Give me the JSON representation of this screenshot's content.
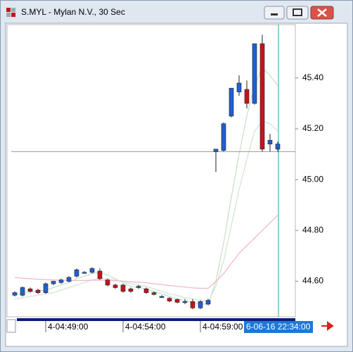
{
  "chart_data": {
    "type": "candlestick",
    "title": "S.MYL - Mylan N.V., 30 Sec",
    "categories": [
      null,
      null,
      null,
      null,
      "4-04:49:00",
      null,
      null,
      null,
      null,
      null,
      null,
      null,
      null,
      null,
      "4-04:54:00",
      null,
      null,
      null,
      null,
      null,
      null,
      null,
      null,
      null,
      "4-04:59:00",
      null,
      null,
      null,
      null,
      null,
      null,
      null,
      null,
      null,
      null
    ],
    "open": [
      44.545,
      44.545,
      44.57,
      44.565,
      44.555,
      44.59,
      44.595,
      44.6,
      44.62,
      44.635,
      44.635,
      44.64,
      44.605,
      44.585,
      44.585,
      44.57,
      44.575,
      44.57,
      44.555,
      44.54,
      44.533,
      44.528,
      44.52,
      44.52,
      44.495,
      44.51,
      45.11,
      45.115,
      45.25,
      45.345,
      45.355,
      45.3,
      45.535,
      45.14,
      45.12
    ],
    "high": [
      44.56,
      44.58,
      44.575,
      44.57,
      44.595,
      44.6,
      44.61,
      44.62,
      44.65,
      44.64,
      44.655,
      44.65,
      44.61,
      44.59,
      44.59,
      44.575,
      44.585,
      44.575,
      44.56,
      44.545,
      44.537,
      44.532,
      44.53,
      44.53,
      44.525,
      44.53,
      45.12,
      45.225,
      45.36,
      45.41,
      45.39,
      45.535,
      45.57,
      45.18,
      45.15
    ],
    "low": [
      44.54,
      44.54,
      44.555,
      44.55,
      44.55,
      44.585,
      44.59,
      44.595,
      44.615,
      44.63,
      44.63,
      44.605,
      44.58,
      44.57,
      44.555,
      44.555,
      44.57,
      44.55,
      44.545,
      44.535,
      44.518,
      44.513,
      44.51,
      44.49,
      44.49,
      44.505,
      45.03,
      45.11,
      45.245,
      45.33,
      45.28,
      45.295,
      45.11,
      45.11,
      45.11
    ],
    "close": [
      44.555,
      44.575,
      44.56,
      44.555,
      44.59,
      44.6,
      44.605,
      44.615,
      44.645,
      44.635,
      44.65,
      44.61,
      44.585,
      44.575,
      44.56,
      44.56,
      44.58,
      44.555,
      44.548,
      44.54,
      44.522,
      44.517,
      44.52,
      44.495,
      44.52,
      44.525,
      45.12,
      45.22,
      45.36,
      45.38,
      45.3,
      45.535,
      45.12,
      45.155,
      45.14
    ],
    "up_color": "#1f5fd0",
    "down_color": "#c8121c",
    "overlays": [
      {
        "color": "#c9e2c9",
        "values": [
          44.55,
          44.55,
          44.56,
          44.56,
          44.565,
          44.575,
          44.585,
          44.595,
          44.61,
          44.62,
          44.63,
          44.635,
          44.625,
          44.61,
          44.595,
          44.58,
          44.575,
          44.57,
          44.56,
          44.55,
          44.54,
          44.53,
          44.525,
          44.515,
          44.51,
          44.51,
          44.6,
          44.75,
          44.93,
          45.1,
          45.25,
          45.37,
          45.44,
          45.41,
          45.37
        ]
      },
      {
        "color": "#d2e6d2",
        "values": [
          44.53,
          44.535,
          44.54,
          44.545,
          44.55,
          44.555,
          44.565,
          44.575,
          44.585,
          44.595,
          44.605,
          44.61,
          44.61,
          44.605,
          44.6,
          44.59,
          44.585,
          44.58,
          44.57,
          44.56,
          44.55,
          44.545,
          44.535,
          44.53,
          44.525,
          44.52,
          44.58,
          44.68,
          44.82,
          44.96,
          45.08,
          45.19,
          45.23,
          45.22,
          45.19
        ]
      },
      {
        "color": "#f5b7cf",
        "values": [
          44.615,
          44.612,
          44.61,
          44.608,
          44.606,
          44.605,
          44.604,
          44.603,
          44.603,
          44.603,
          44.604,
          44.604,
          44.603,
          44.602,
          44.6,
          44.598,
          44.596,
          44.594,
          44.59,
          44.587,
          44.583,
          44.58,
          44.577,
          44.574,
          44.572,
          44.572,
          44.6,
          44.63,
          44.67,
          44.71,
          44.74,
          44.77,
          44.8,
          44.83,
          44.86
        ]
      }
    ],
    "ylim": [
      44.46,
      45.61
    ],
    "yticks": [
      {
        "value": 44.6,
        "label": "44.60"
      },
      {
        "value": 44.8,
        "label": "44.80"
      },
      {
        "value": 45,
        "label": "45.00"
      },
      {
        "value": 45.2,
        "label": "45.20"
      },
      {
        "value": 45.4,
        "label": "45.40"
      }
    ],
    "cursor": {
      "label": "6-06-16 22:34:00",
      "price": 45.11
    }
  }
}
